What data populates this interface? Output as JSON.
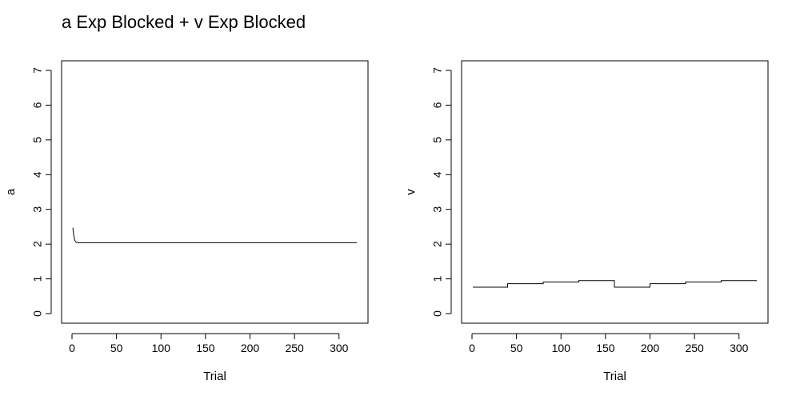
{
  "figure": {
    "title": "a Exp Blocked + v Exp Blocked"
  },
  "chart_data": [
    {
      "type": "line",
      "xlabel": "Trial",
      "ylabel": "a",
      "xlim": [
        0,
        320
      ],
      "ylim": [
        0,
        7
      ],
      "xticks": [
        0,
        50,
        100,
        150,
        200,
        250,
        300
      ],
      "yticks": [
        0,
        1,
        2,
        3,
        4,
        5,
        6,
        7
      ],
      "grid": false,
      "series": [
        {
          "x": [
            1,
            2,
            3,
            4,
            5,
            6,
            8,
            10,
            15,
            20,
            50,
            100,
            150,
            200,
            250,
            300,
            320
          ],
          "values": [
            2.47,
            2.25,
            2.12,
            2.07,
            2.05,
            2.04,
            2.04,
            2.04,
            2.04,
            2.04,
            2.04,
            2.04,
            2.04,
            2.04,
            2.04,
            2.04,
            2.04
          ]
        }
      ]
    },
    {
      "type": "line",
      "xlabel": "Trial",
      "ylabel": "v",
      "xlim": [
        0,
        320
      ],
      "ylim": [
        0,
        7
      ],
      "xticks": [
        0,
        50,
        100,
        150,
        200,
        250,
        300
      ],
      "yticks": [
        0,
        1,
        2,
        3,
        4,
        5,
        6,
        7
      ],
      "grid": false,
      "series": [
        {
          "x": [
            1,
            40,
            40,
            80,
            80,
            120,
            120,
            160,
            160,
            200,
            200,
            240,
            240,
            280,
            280,
            320
          ],
          "values": [
            0.76,
            0.76,
            0.86,
            0.86,
            0.91,
            0.91,
            0.95,
            0.95,
            0.76,
            0.76,
            0.86,
            0.86,
            0.91,
            0.91,
            0.95,
            0.95
          ]
        }
      ]
    }
  ]
}
